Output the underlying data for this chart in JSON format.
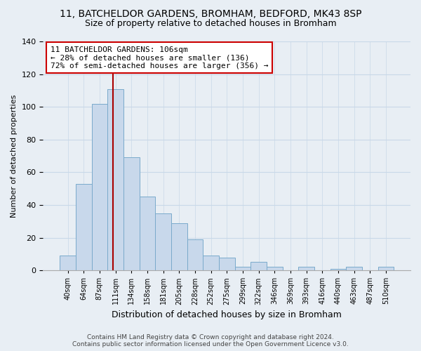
{
  "title": "11, BATCHELDOR GARDENS, BROMHAM, BEDFORD, MK43 8SP",
  "subtitle": "Size of property relative to detached houses in Bromham",
  "xlabel": "Distribution of detached houses by size in Bromham",
  "ylabel": "Number of detached properties",
  "bin_labels": [
    "40sqm",
    "64sqm",
    "87sqm",
    "111sqm",
    "134sqm",
    "158sqm",
    "181sqm",
    "205sqm",
    "228sqm",
    "252sqm",
    "275sqm",
    "299sqm",
    "322sqm",
    "346sqm",
    "369sqm",
    "393sqm",
    "416sqm",
    "440sqm",
    "463sqm",
    "487sqm",
    "510sqm"
  ],
  "bar_heights": [
    9,
    53,
    102,
    111,
    69,
    45,
    35,
    29,
    19,
    9,
    8,
    2,
    5,
    2,
    0,
    2,
    0,
    1,
    2,
    0,
    2
  ],
  "bar_color": "#c8d8eb",
  "bar_edge_color": "#7aaacb",
  "vline_color": "#aa0000",
  "annotation_line1": "11 BATCHELDOR GARDENS: 106sqm",
  "annotation_line2": "← 28% of detached houses are smaller (136)",
  "annotation_line3": "72% of semi-detached houses are larger (356) →",
  "annotation_box_color": "#ffffff",
  "annotation_box_edge": "#cc0000",
  "ylim": [
    0,
    140
  ],
  "yticks": [
    0,
    20,
    40,
    60,
    80,
    100,
    120,
    140
  ],
  "footer_line1": "Contains HM Land Registry data © Crown copyright and database right 2024.",
  "footer_line2": "Contains public sector information licensed under the Open Government Licence v3.0.",
  "bg_color": "#e8eef4",
  "grid_color": "#c8d8e8",
  "vline_x_data": 2.85
}
